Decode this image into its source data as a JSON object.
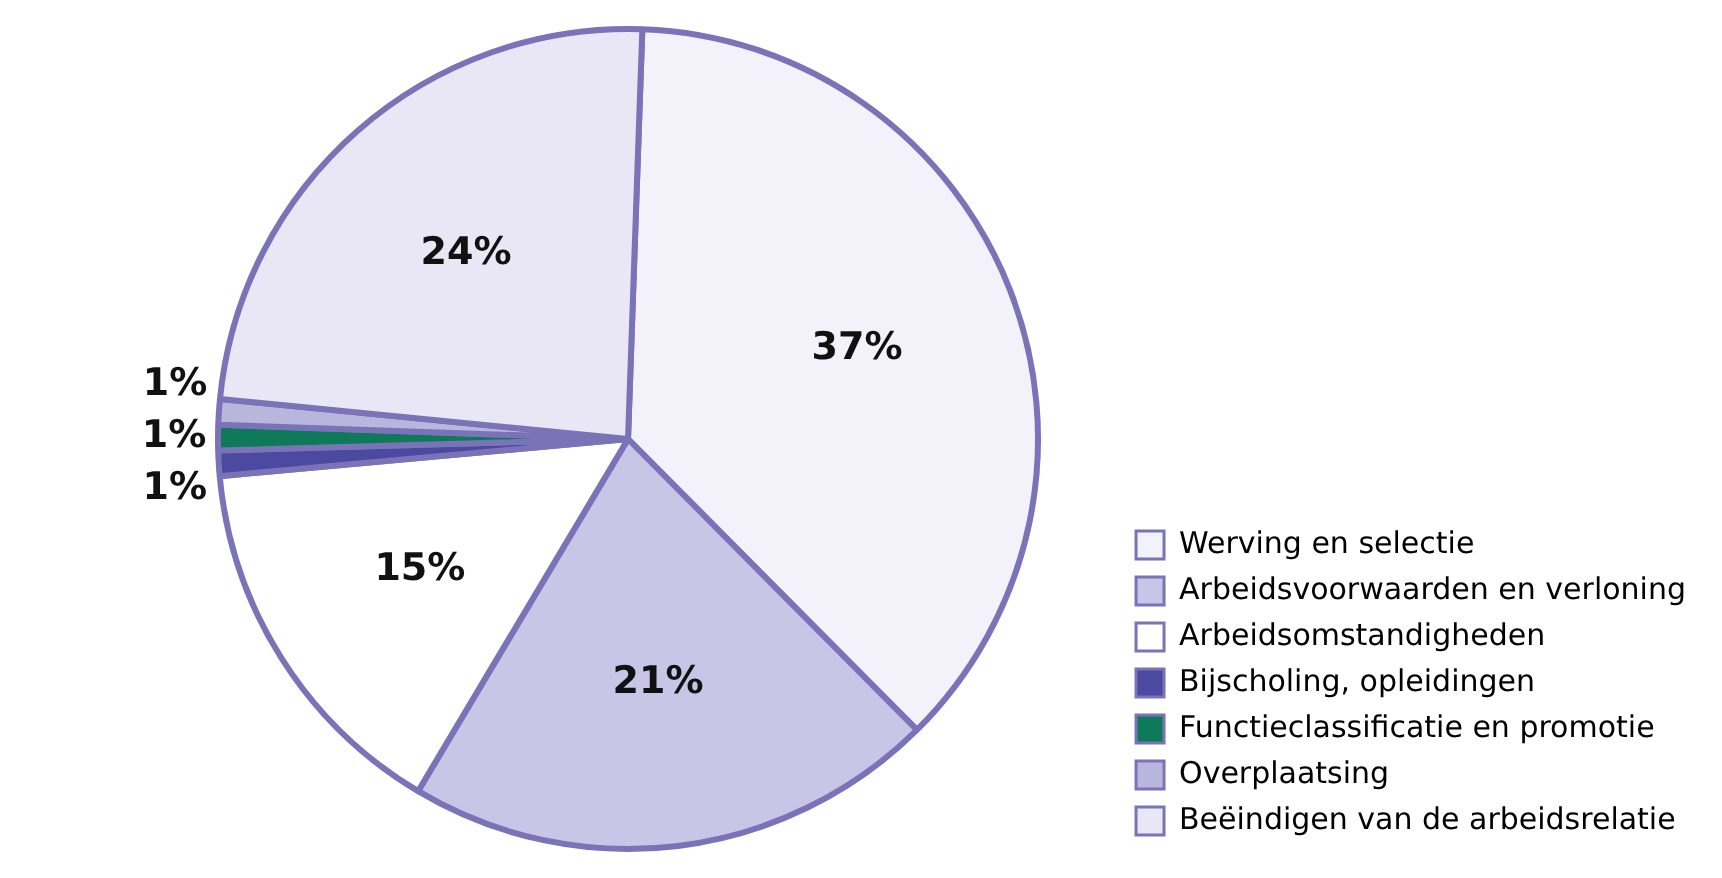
{
  "chart_data": {
    "type": "pie",
    "categories": [
      "Werving en selectie",
      "Arbeidsvoorwaarden en verloning",
      "Arbeidsomstandigheden",
      "Bijscholing, opleidingen",
      "Functieclassificatie en promotie",
      "Overplaatsing",
      "Beëindigen van de arbeidsrelatie"
    ],
    "values": [
      37,
      21,
      15,
      1,
      1,
      1,
      24
    ],
    "colors": [
      "#f3f2fa",
      "#c8c5e6",
      "#ffffff",
      "#4b4aa0",
      "#0f7a5a",
      "#b9b6dd",
      "#e9e7f5"
    ],
    "value_labels": [
      "37%",
      "21%",
      "15%",
      "1%",
      "1%",
      "1%",
      "24%"
    ],
    "legend": "bottom right"
  }
}
